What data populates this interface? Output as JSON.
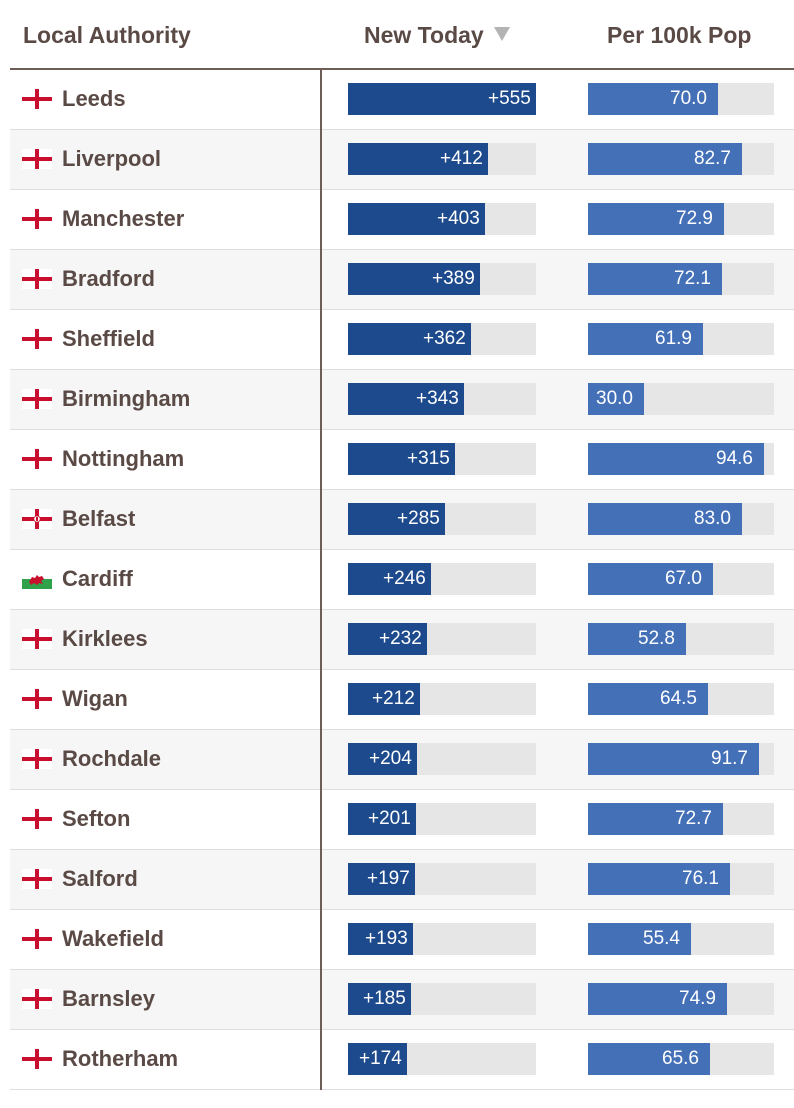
{
  "columns": {
    "local_authority": "Local Authority",
    "new_today": "New Today",
    "per_100k": "Per 100k Pop"
  },
  "sort": {
    "column": "new_today",
    "direction": "descending",
    "icon": "sort-descending-icon"
  },
  "colors": {
    "new_today_bar": "#1d4a8c",
    "per_100k_bar": "#4470b8",
    "bar_track": "#e6e6e6",
    "text": "#5a4a46",
    "england_cross": "#c8102e",
    "wales_green": "#30a24a"
  },
  "scale": {
    "new_today_max": 555,
    "per_100k_max": 100
  },
  "rows": [
    {
      "name": "Leeds",
      "flag": "england",
      "new_today": 555,
      "new_today_label": "+555",
      "per_100k": 70.0,
      "per_100k_label": "70.0"
    },
    {
      "name": "Liverpool",
      "flag": "england",
      "new_today": 412,
      "new_today_label": "+412",
      "per_100k": 82.7,
      "per_100k_label": "82.7"
    },
    {
      "name": "Manchester",
      "flag": "england",
      "new_today": 403,
      "new_today_label": "+403",
      "per_100k": 72.9,
      "per_100k_label": "72.9"
    },
    {
      "name": "Bradford",
      "flag": "england",
      "new_today": 389,
      "new_today_label": "+389",
      "per_100k": 72.1,
      "per_100k_label": "72.1"
    },
    {
      "name": "Sheffield",
      "flag": "england",
      "new_today": 362,
      "new_today_label": "+362",
      "per_100k": 61.9,
      "per_100k_label": "61.9"
    },
    {
      "name": "Birmingham",
      "flag": "england",
      "new_today": 343,
      "new_today_label": "+343",
      "per_100k": 30.0,
      "per_100k_label": "30.0"
    },
    {
      "name": "Nottingham",
      "flag": "england",
      "new_today": 315,
      "new_today_label": "+315",
      "per_100k": 94.6,
      "per_100k_label": "94.6"
    },
    {
      "name": "Belfast",
      "flag": "northern-ireland",
      "new_today": 285,
      "new_today_label": "+285",
      "per_100k": 83.0,
      "per_100k_label": "83.0"
    },
    {
      "name": "Cardiff",
      "flag": "wales",
      "new_today": 246,
      "new_today_label": "+246",
      "per_100k": 67.0,
      "per_100k_label": "67.0"
    },
    {
      "name": "Kirklees",
      "flag": "england",
      "new_today": 232,
      "new_today_label": "+232",
      "per_100k": 52.8,
      "per_100k_label": "52.8"
    },
    {
      "name": "Wigan",
      "flag": "england",
      "new_today": 212,
      "new_today_label": "+212",
      "per_100k": 64.5,
      "per_100k_label": "64.5"
    },
    {
      "name": "Rochdale",
      "flag": "england",
      "new_today": 204,
      "new_today_label": "+204",
      "per_100k": 91.7,
      "per_100k_label": "91.7"
    },
    {
      "name": "Sefton",
      "flag": "england",
      "new_today": 201,
      "new_today_label": "+201",
      "per_100k": 72.7,
      "per_100k_label": "72.7"
    },
    {
      "name": "Salford",
      "flag": "england",
      "new_today": 197,
      "new_today_label": "+197",
      "per_100k": 76.1,
      "per_100k_label": "76.1"
    },
    {
      "name": "Wakefield",
      "flag": "england",
      "new_today": 193,
      "new_today_label": "+193",
      "per_100k": 55.4,
      "per_100k_label": "55.4"
    },
    {
      "name": "Barnsley",
      "flag": "england",
      "new_today": 185,
      "new_today_label": "+185",
      "per_100k": 74.9,
      "per_100k_label": "74.9"
    },
    {
      "name": "Rotherham",
      "flag": "england",
      "new_today": 174,
      "new_today_label": "+174",
      "per_100k": 65.6,
      "per_100k_label": "65.6"
    }
  ]
}
